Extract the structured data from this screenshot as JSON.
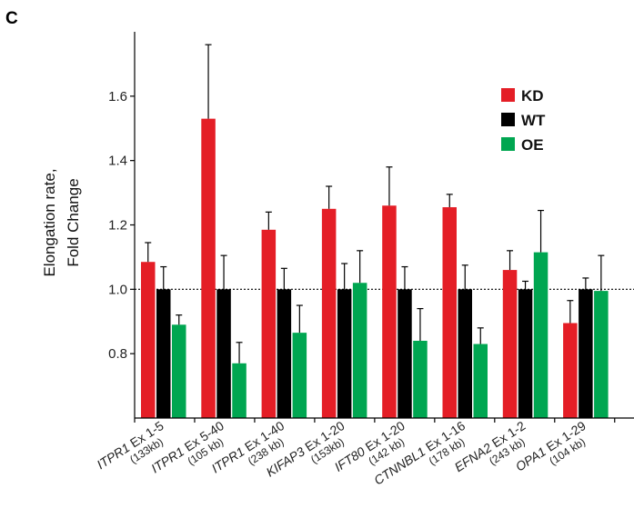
{
  "panel_label": "C",
  "chart_data": {
    "type": "bar",
    "title": "",
    "xlabel": "",
    "ylabel": "Elongation rate, Fold Change",
    "ylabel_lines": [
      "Elongation rate,",
      "Fold Change"
    ],
    "ylim": [
      0.6,
      1.8
    ],
    "yticks": [
      "0.8",
      "1.0",
      "1.2",
      "1.4",
      "1.6"
    ],
    "reference_line": 1.0,
    "legend_position": "top-right",
    "categories": [
      {
        "gene": "ITPR1",
        "rest": " Ex 1-5",
        "size": "(133kb)"
      },
      {
        "gene": "ITPR1",
        "rest": " Ex 5-40",
        "size": "(105 kb)"
      },
      {
        "gene": "ITPR1",
        "rest": " Ex 1-40",
        "size": "(238 kb)"
      },
      {
        "gene": "KIFAP3",
        "rest": " Ex 1-20",
        "size": "(153kb)"
      },
      {
        "gene": "IFT80",
        "rest": " Ex 1-20",
        "size": "(142 kb)"
      },
      {
        "gene": "CTNNBL1",
        "rest": " Ex 1-16",
        "size": "(178 kb)"
      },
      {
        "gene": "EFNA2",
        "rest": " Ex 1-2",
        "size": "(243 kb)"
      },
      {
        "gene": "OPA1",
        "rest": " Ex 1-29",
        "size": "(104 kb)"
      }
    ],
    "series": [
      {
        "name": "KD",
        "color": "#e41e26",
        "values": [
          1.085,
          1.53,
          1.185,
          1.25,
          1.26,
          1.255,
          1.06,
          0.895
        ],
        "errors": [
          0.06,
          0.23,
          0.055,
          0.07,
          0.12,
          0.04,
          0.06,
          0.07
        ]
      },
      {
        "name": "WT",
        "color": "#000000",
        "values": [
          1.0,
          1.0,
          1.0,
          1.0,
          1.0,
          1.0,
          1.0,
          1.0
        ],
        "errors": [
          0.07,
          0.105,
          0.065,
          0.08,
          0.07,
          0.075,
          0.025,
          0.035
        ]
      },
      {
        "name": "OE",
        "color": "#00a651",
        "values": [
          0.89,
          0.77,
          0.865,
          1.02,
          0.84,
          0.83,
          1.115,
          0.995
        ],
        "errors": [
          0.03,
          0.065,
          0.085,
          0.1,
          0.1,
          0.05,
          0.13,
          0.11
        ]
      }
    ]
  }
}
